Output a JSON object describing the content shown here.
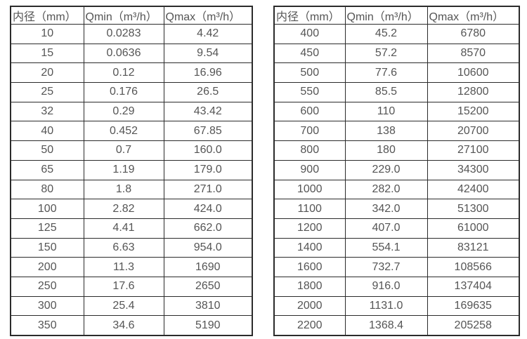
{
  "colors": {
    "background": "#ffffff",
    "text": "#555555",
    "border": "#2b2b2b"
  },
  "tables": [
    {
      "name": "flow-table-small-diameters",
      "headers": [
        "内径（mm）",
        "Qmin（m³/h）",
        "Qmax（m³/h）"
      ],
      "rows": [
        [
          "10",
          "0.0283",
          "4.42"
        ],
        [
          "15",
          "0.0636",
          "9.54"
        ],
        [
          "20",
          "0.12",
          "16.96"
        ],
        [
          "25",
          "0.176",
          "26.5"
        ],
        [
          "32",
          "0.29",
          "43.42"
        ],
        [
          "40",
          "0.452",
          "67.85"
        ],
        [
          "50",
          "0.7",
          "160.0"
        ],
        [
          "65",
          "1.19",
          "179.0"
        ],
        [
          "80",
          "1.8",
          "271.0"
        ],
        [
          "100",
          "2.82",
          "424.0"
        ],
        [
          "125",
          "4.41",
          "662.0"
        ],
        [
          "150",
          "6.63",
          "954.0"
        ],
        [
          "200",
          "11.3",
          "1690"
        ],
        [
          "250",
          "17.6",
          "2650"
        ],
        [
          "300",
          "25.4",
          "3810"
        ],
        [
          "350",
          "34.6",
          "5190"
        ]
      ]
    },
    {
      "name": "flow-table-large-diameters",
      "headers": [
        "内径（mm）",
        "Qmin（m³/h）",
        "Qmax（m³/h）"
      ],
      "rows": [
        [
          "400",
          "45.2",
          "6780"
        ],
        [
          "450",
          "57.2",
          "8570"
        ],
        [
          "500",
          "77.6",
          "10600"
        ],
        [
          "550",
          "85.5",
          "12800"
        ],
        [
          "600",
          "110",
          "15200"
        ],
        [
          "700",
          "138",
          "20700"
        ],
        [
          "800",
          "180",
          "27100"
        ],
        [
          "900",
          "229.0",
          "34300"
        ],
        [
          "1000",
          "282.0",
          "42400"
        ],
        [
          "1100",
          "342.0",
          "51300"
        ],
        [
          "1200",
          "407.0",
          "61000"
        ],
        [
          "1400",
          "554.1",
          "83121"
        ],
        [
          "1600",
          "732.7",
          "108566"
        ],
        [
          "1800",
          "916.0",
          "137404"
        ],
        [
          "2000",
          "1131.0",
          "169635"
        ],
        [
          "2200",
          "1368.4",
          "205258"
        ]
      ]
    }
  ]
}
